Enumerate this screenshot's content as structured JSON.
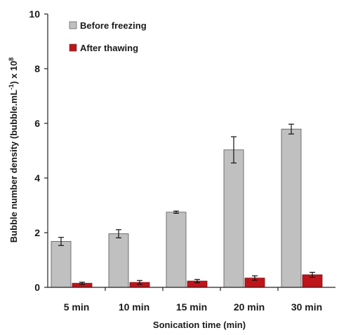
{
  "chart_data": {
    "type": "bar",
    "categories": [
      "5 min",
      "10 min",
      "15 min",
      "20 min",
      "30 min"
    ],
    "series": [
      {
        "name": "Before freezing",
        "color": "#c0c0c0",
        "values": [
          1.68,
          1.96,
          2.75,
          5.03,
          5.79
        ],
        "errors": [
          0.15,
          0.15,
          0.04,
          0.48,
          0.18
        ]
      },
      {
        "name": "After thawing",
        "color": "#c0141b",
        "values": [
          0.15,
          0.18,
          0.23,
          0.34,
          0.46
        ],
        "errors": [
          0.04,
          0.07,
          0.06,
          0.08,
          0.09
        ]
      }
    ],
    "xlabel": "Sonication time (min)",
    "ylabel_main": "Bubble number density (bubble.mL",
    "ylabel_sup1": "-1",
    "ylabel_mid": ") x 10",
    "ylabel_sup2": "8",
    "ylim": [
      0,
      10
    ],
    "yticks": [
      "0",
      "2",
      "4",
      "6",
      "8",
      "10"
    ],
    "grid": false,
    "legend_position": "top-left"
  }
}
